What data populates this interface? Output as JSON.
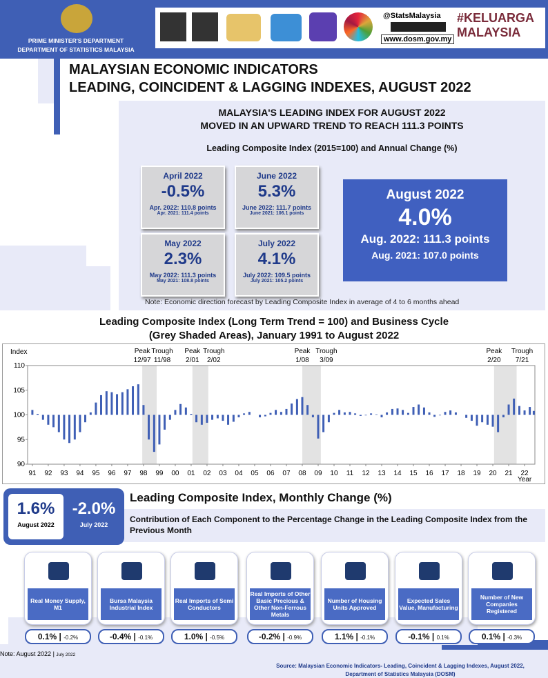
{
  "header": {
    "department": "PRIME MINISTER'S DEPARTMENT",
    "agency": "DEPARTMENT OF STATISTICS MALAYSIA",
    "social": "@StatsMalaysia",
    "website": "www.dosm.gov.my",
    "campaign": "#KELUARGA MALAYSIA"
  },
  "title": [
    "MALAYSIAN ECONOMIC INDICATORS",
    "LEADING, COINCIDENT & LAGGING INDEXES, AUGUST 2022"
  ],
  "summary": {
    "headline": [
      "MALAYSIA'S LEADING INDEX FOR AUGUST 2022",
      "MOVED IN AN UPWARD TREND TO REACH 111.3 POINTS"
    ],
    "subtitle": "Leading Composite Index (2015=100) and Annual Change (%)",
    "cards": [
      {
        "month": "April 2022",
        "change": "-0.5%",
        "current": "Apr. 2022: 110.8 points",
        "previous": "Apr. 2021: 111.4 points"
      },
      {
        "month": "June 2022",
        "change": "5.3%",
        "current": "June 2022: 111.7 points",
        "previous": "June 2021: 106.1 points"
      },
      {
        "month": "May 2022",
        "change": "2.3%",
        "current": "May 2022: 111.3 points",
        "previous": "May 2021: 108.8 points"
      },
      {
        "month": "July 2022",
        "change": "4.1%",
        "current": "July 2022: 109.5 points",
        "previous": "July 2021: 105.2 points"
      }
    ],
    "highlight": {
      "month": "August 2022",
      "change": "4.0%",
      "current": "Aug. 2022: 111.3 points",
      "previous": "Aug. 2021: 107.0 points"
    },
    "note": "Note: Economic direction forecast by Leading Composite Index in average of 4 to 6 months ahead"
  },
  "chart_data": {
    "type": "bar",
    "title": "Leading Composite Index (Long Term Trend = 100) and Business  Cycle",
    "subtitle": "(Grey Shaded Areas), January 1991 to August 2022",
    "y_label": "Index",
    "x_label": "Year",
    "color": "#3f5fb5",
    "baseline": 100,
    "grid": false,
    "shade_color": "#e3e3e3",
    "xlim": [
      1990.7,
      2022.65
    ],
    "ylim": [
      90,
      110
    ],
    "yticks": [
      90,
      95,
      100,
      105,
      110
    ],
    "xticks": [
      {
        "value": 1991,
        "label": "91"
      },
      {
        "value": 1992,
        "label": "92"
      },
      {
        "value": 1993,
        "label": "93"
      },
      {
        "value": 1994,
        "label": "94"
      },
      {
        "value": 1995,
        "label": "95"
      },
      {
        "value": 1996,
        "label": "96"
      },
      {
        "value": 1997,
        "label": "97"
      },
      {
        "value": 1998,
        "label": "98"
      },
      {
        "value": 1999,
        "label": "99"
      },
      {
        "value": 2000,
        "label": "00"
      },
      {
        "value": 2001,
        "label": "01"
      },
      {
        "value": 2002,
        "label": "02"
      },
      {
        "value": 2003,
        "label": "03"
      },
      {
        "value": 2004,
        "label": "04"
      },
      {
        "value": 2005,
        "label": "05"
      },
      {
        "value": 2006,
        "label": "06"
      },
      {
        "value": 2007,
        "label": "07"
      },
      {
        "value": 2008,
        "label": "08"
      },
      {
        "value": 2009,
        "label": "09"
      },
      {
        "value": 2010,
        "label": "10"
      },
      {
        "value": 2011,
        "label": "11"
      },
      {
        "value": 2012,
        "label": "12"
      },
      {
        "value": 2013,
        "label": "13"
      },
      {
        "value": 2014,
        "label": "14"
      },
      {
        "value": 2015,
        "label": "15"
      },
      {
        "value": 2016,
        "label": "16"
      },
      {
        "value": 2017,
        "label": "17"
      },
      {
        "value": 2018,
        "label": "18"
      },
      {
        "value": 2019,
        "label": "19"
      },
      {
        "value": 2020,
        "label": "20"
      },
      {
        "value": 2021,
        "label": "21"
      },
      {
        "value": 2022,
        "label": "22"
      }
    ],
    "cycles": [
      {
        "peak": "Peak",
        "peak_date": "12/97",
        "trough": "Trough",
        "trough_date": "11/98",
        "x0": 1997.92,
        "x1": 1998.83
      },
      {
        "peak": "Peak",
        "peak_date": "2/01",
        "trough": "Trough",
        "trough_date": "2/02",
        "x0": 2001.08,
        "x1": 2002.08
      },
      {
        "peak": "Peak",
        "peak_date": "1/08",
        "trough": "Trough",
        "trough_date": "3/09",
        "x0": 2008.0,
        "x1": 2009.17
      },
      {
        "peak": "Peak",
        "peak_date": "2/20",
        "trough": "Trough",
        "trough_date": "7/21",
        "x0": 2020.08,
        "x1": 2021.5
      }
    ],
    "x": [
      1991,
      1991.33,
      1991.67,
      1992,
      1992.33,
      1992.67,
      1993,
      1993.33,
      1993.67,
      1994,
      1994.33,
      1994.67,
      1995,
      1995.33,
      1995.67,
      1996,
      1996.33,
      1996.67,
      1997,
      1997.33,
      1997.67,
      1998,
      1998.33,
      1998.67,
      1999,
      1999.33,
      1999.67,
      2000,
      2000.33,
      2000.67,
      2001,
      2001.33,
      2001.67,
      2002,
      2002.33,
      2002.67,
      2003,
      2003.33,
      2003.67,
      2004,
      2004.33,
      2004.67,
      2005,
      2005.33,
      2005.67,
      2006,
      2006.33,
      2006.67,
      2007,
      2007.33,
      2007.67,
      2008,
      2008.33,
      2008.67,
      2009,
      2009.33,
      2009.67,
      2010,
      2010.33,
      2010.67,
      2011,
      2011.33,
      2011.67,
      2012,
      2012.33,
      2012.67,
      2013,
      2013.33,
      2013.67,
      2014,
      2014.33,
      2014.67,
      2015,
      2015.33,
      2015.67,
      2016,
      2016.33,
      2016.67,
      2017,
      2017.33,
      2017.67,
      2018,
      2018.33,
      2018.67,
      2019,
      2019.33,
      2019.67,
      2020,
      2020.33,
      2020.67,
      2021,
      2021.33,
      2021.67,
      2022,
      2022.33,
      2022.58
    ],
    "values": [
      101,
      100.2,
      99,
      98,
      97.5,
      96.5,
      95,
      94.3,
      95,
      96.5,
      98.5,
      100.5,
      102.5,
      104,
      104.8,
      104.6,
      104.2,
      104.6,
      105.2,
      105.8,
      106.2,
      102,
      95,
      92.5,
      94,
      97,
      99,
      101,
      102.2,
      101.5,
      100.2,
      98.5,
      98,
      98.4,
      99,
      99.3,
      98.8,
      98,
      98.6,
      99.5,
      100.3,
      100.6,
      100,
      99.5,
      99.7,
      100.4,
      101,
      100.6,
      101.2,
      102.3,
      103.2,
      103.6,
      102,
      99.5,
      95.2,
      96.5,
      98.5,
      100.4,
      101,
      100.5,
      100.6,
      100.3,
      99.8,
      99.9,
      100.3,
      100.1,
      99.5,
      100.5,
      101.2,
      101.3,
      101,
      100.4,
      101.6,
      102.1,
      101.5,
      100.5,
      99.6,
      99.9,
      100.6,
      100.9,
      100.5,
      100,
      99.4,
      98.8,
      97.8,
      98.5,
      98,
      97.6,
      96.5,
      99.5,
      102.1,
      103.3,
      101.8,
      100.9,
      101.6,
      100.8
    ]
  },
  "monthly": {
    "current": {
      "value": "1.6%",
      "month": "August 2022"
    },
    "previous": {
      "value": "-2.0%",
      "month": "July 2022"
    },
    "title": "Leading Composite Index, Monthly Change (%)",
    "subtitle": "Contribution of Each Component to the Percentage Change in the Leading Composite Index from the Previous  Month",
    "components": [
      {
        "name": "Real Money Supply, M1",
        "current": "0.1%",
        "previous": "-0.2%"
      },
      {
        "name": "Bursa Malaysia Industrial Index",
        "current": "-0.4%",
        "previous": "-0.1%"
      },
      {
        "name": "Real Imports of Semi Conductors",
        "current": "1.0%",
        "previous": "-0.5%"
      },
      {
        "name": "Real Imports of Other Basic Precious & Other Non-Ferrous Metals",
        "current": "-0.2%",
        "previous": "-0.9%"
      },
      {
        "name": "Number of Housing Units Approved",
        "current": "1.1%",
        "previous": "-0.1%"
      },
      {
        "name": "Expected Sales Value, Manufacturing",
        "current": "-0.1%",
        "previous": "0.1%"
      },
      {
        "name": "Number of New Companies Registered",
        "current": "0.1%",
        "previous": "-0.3%"
      }
    ]
  },
  "footer": {
    "note_current": "Note: August 2022",
    "note_previous": "July 2022",
    "source": "Source: Malaysian Economic Indicators- Leading, Coincident & Lagging Indexes, August 2022, Department of Statistics Malaysia (DOSM)"
  }
}
